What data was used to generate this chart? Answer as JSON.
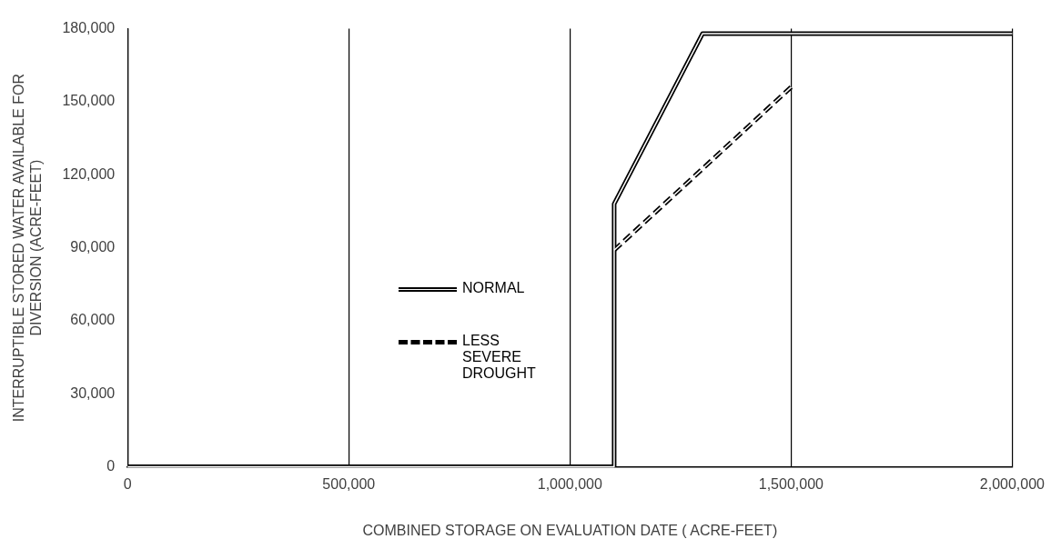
{
  "chart_data": {
    "type": "line",
    "xlabel": "COMBINED STORAGE ON EVALUATION DATE ( ACRE-FEET)",
    "ylabel": "INTERRUPTIBLE STORED WATER AVAILABLE FOR DIVERSION (ACRE-FEET)",
    "series": [
      {
        "name": "NORMAL",
        "color": "#000000",
        "line_style": "solid",
        "x": [
          0,
          1100000,
          1100000,
          1300000,
          2000000
        ],
        "values": [
          0,
          0,
          108000,
          178000,
          178000
        ]
      },
      {
        "name": "LESS SEVERE DROUGHT",
        "color": "#000000",
        "line_style": "dashed",
        "x": [
          1100000,
          1500000
        ],
        "values": [
          89000,
          156000
        ]
      }
    ],
    "xlim": [
      0,
      2000000
    ],
    "xticks": [
      0,
      {
        "value": 500000,
        "label": "500,000"
      },
      {
        "value": 1000000,
        "label": "1,000,000"
      },
      {
        "value": 1500000,
        "label": "1,500,000"
      },
      {
        "value": 2000000,
        "label": "2,000,000"
      }
    ],
    "ylim": [
      0,
      180000
    ],
    "yticks": [
      0,
      {
        "value": 30000,
        "label": "30,000"
      },
      {
        "value": 60000,
        "label": "60,000"
      },
      {
        "value": 90000,
        "label": "90,000"
      },
      {
        "value": 120000,
        "label": "120,000"
      },
      {
        "value": 150000,
        "label": "150,000"
      },
      {
        "value": 180000,
        "label": "180,000"
      }
    ],
    "grid": "x",
    "legend": "left",
    "marker": "none"
  }
}
